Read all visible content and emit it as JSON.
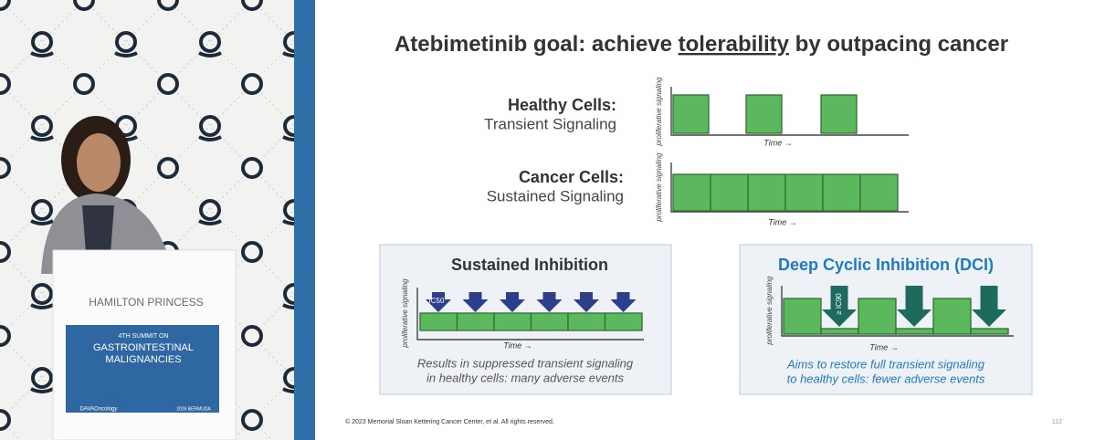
{
  "slide": {
    "title": {
      "before": "Atebimetinib goal: achieve ",
      "emphasis": "tolerability",
      "after": " by outpacing cancer"
    },
    "healthy": {
      "heading": "Healthy Cells:",
      "subheading": "Transient Signaling",
      "y_label": "proliferative signaling",
      "x_label": "Time →"
    },
    "cancer": {
      "heading": "Cancer Cells:",
      "subheading": "Sustained Signaling",
      "y_label": "proliferative signaling",
      "x_label": "Time →"
    },
    "panels": [
      {
        "title": "Sustained Inhibition",
        "arrow_label": "IC50",
        "y_label": "proliferative signaling",
        "x_label": "Time →",
        "caption": [
          "Results in suppressed transient signaling",
          "in healthy cells: many adverse events"
        ]
      },
      {
        "title": "Deep Cyclic Inhibition (DCI)",
        "arrow_label": "≥ IC90",
        "y_label": "proliferative signaling",
        "x_label": "Time →",
        "caption": [
          "Aims to restore full transient signaling",
          "to healthy cells: fewer adverse events"
        ]
      }
    ],
    "footer": "© 2023 Memorial Sloan Kettering Cancer Center, et al. All rights reserved.",
    "page_number": "112"
  },
  "podium": {
    "hotel": "HAMILTON PRINCESS",
    "summit": "4TH SUMMIT ON",
    "lines": [
      "GASTROINTESTINAL",
      "MALIGNANCIES"
    ],
    "sponsor": "DAVAOncology",
    "event": "2026 BERMUDA"
  }
}
